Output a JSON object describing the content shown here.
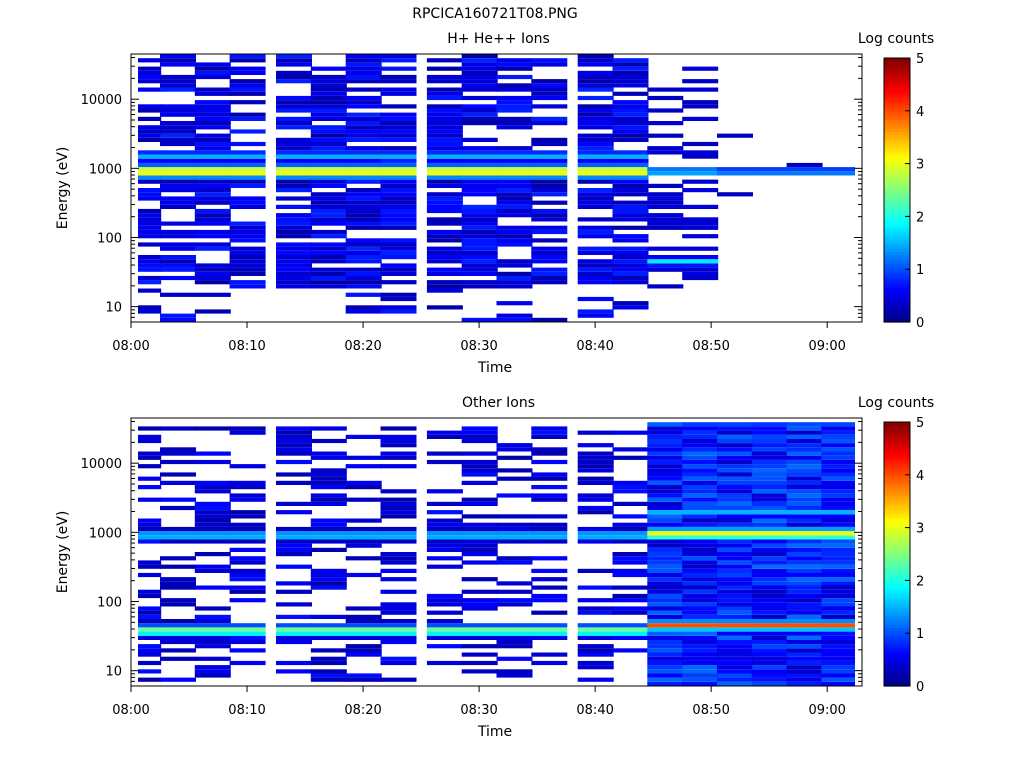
{
  "figure": {
    "title": "RPCICA160721T08.PNG"
  },
  "chart_data": [
    {
      "type": "heatmap",
      "title": "H+ He++ Ions",
      "xlabel": "Time",
      "ylabel": "Energy (eV)",
      "yscale": "log",
      "ylim": [
        6,
        45000
      ],
      "xlim": [
        "08:00",
        "09:03"
      ],
      "x_ticks": [
        "08:00",
        "08:10",
        "08:20",
        "08:30",
        "08:40",
        "08:50",
        "09:00"
      ],
      "y_ticks": [
        "10",
        "100",
        "1000",
        "10000"
      ],
      "colorbar": {
        "label": "Log counts",
        "ticks": [
          "0",
          "1",
          "2",
          "3",
          "4",
          "5"
        ],
        "range": [
          0,
          5
        ],
        "colormap": "jet"
      },
      "time_bins": [
        "08:01",
        "08:04",
        "08:07",
        "08:10",
        "08:14",
        "08:17",
        "08:20",
        "08:23",
        "08:27",
        "08:30",
        "08:33",
        "08:36",
        "08:40",
        "08:43",
        "08:46",
        "08:49",
        "08:52",
        "08:55",
        "08:58",
        "09:01"
      ],
      "profile": [
        {
          "segment": "08:01-08:46",
          "peak_energy_eV": 900,
          "peak_log_counts": 3.3,
          "background_log_counts": 0.4,
          "coverage": "6-45000 eV, sparse"
        },
        {
          "segment": "08:46-08:52",
          "peak_energy_eV": 900,
          "peak_log_counts": 1.9,
          "secondary_peak_eV": 45,
          "secondary_log_counts": 1.8,
          "coverage": "sparse"
        },
        {
          "segment": "08:52-09:03",
          "peak_energy_eV": 900,
          "peak_log_counts": 1.9,
          "coverage": "very sparse"
        }
      ]
    },
    {
      "type": "heatmap",
      "title": "Other Ions",
      "xlabel": "Time",
      "ylabel": "Energy (eV)",
      "yscale": "log",
      "ylim": [
        6,
        45000
      ],
      "xlim": [
        "08:00",
        "09:03"
      ],
      "x_ticks": [
        "08:00",
        "08:10",
        "08:20",
        "08:30",
        "08:40",
        "08:50",
        "09:00"
      ],
      "y_ticks": [
        "10",
        "100",
        "1000",
        "10000"
      ],
      "colorbar": {
        "label": "Log counts",
        "ticks": [
          "0",
          "1",
          "2",
          "3",
          "4",
          "5"
        ],
        "range": [
          0,
          5
        ],
        "colormap": "jet"
      },
      "time_bins": [
        "08:01",
        "08:04",
        "08:07",
        "08:10",
        "08:14",
        "08:17",
        "08:20",
        "08:23",
        "08:27",
        "08:30",
        "08:33",
        "08:36",
        "08:40",
        "08:43",
        "08:46",
        "08:49",
        "08:52",
        "08:55",
        "08:58",
        "09:01"
      ],
      "profile": [
        {
          "segment": "08:01-08:46",
          "peak_energy_eV": 900,
          "peak_log_counts": 1.7,
          "secondary_peak_eV": 38,
          "secondary_log_counts": 2.5,
          "background_log_counts": 0.3,
          "coverage": "sparse"
        },
        {
          "segment": "08:46-09:03",
          "peak_energy_eV": 950,
          "peak_log_counts": 3.1,
          "secondary_peak_eV": 45,
          "secondary_log_counts": 4.0,
          "background_log_counts": 0.7,
          "coverage": "dense"
        }
      ]
    }
  ]
}
